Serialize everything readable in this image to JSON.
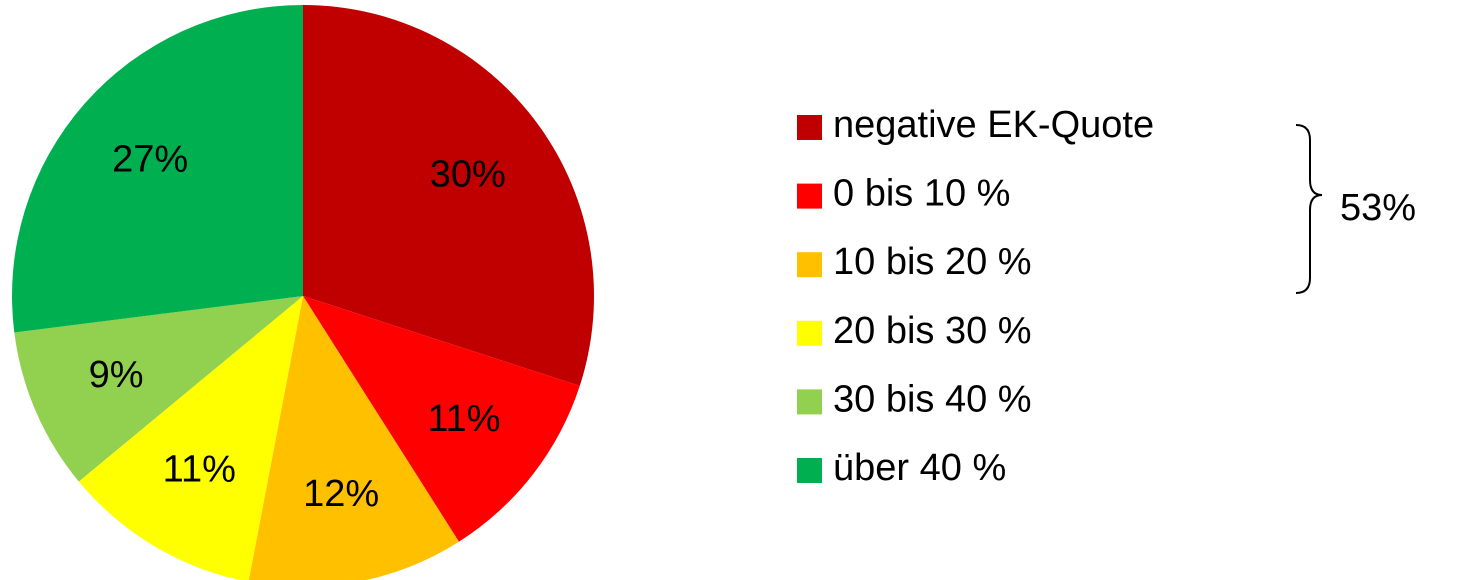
{
  "chart_data": {
    "type": "pie",
    "categories": [
      "negative EK-Quote",
      "0 bis 10 %",
      "10 bis 20 %",
      "20 bis 30 %",
      "30 bis 40 %",
      "über 40 %"
    ],
    "values": [
      30,
      11,
      12,
      11,
      9,
      27
    ],
    "value_labels": [
      "30%",
      "11%",
      "12%",
      "11%",
      "9%",
      "27%"
    ],
    "colors": [
      "#c00000",
      "#ff0000",
      "#ffc000",
      "#ffff00",
      "#92d050",
      "#00b050"
    ],
    "annotation": "53%",
    "legend": "right"
  }
}
